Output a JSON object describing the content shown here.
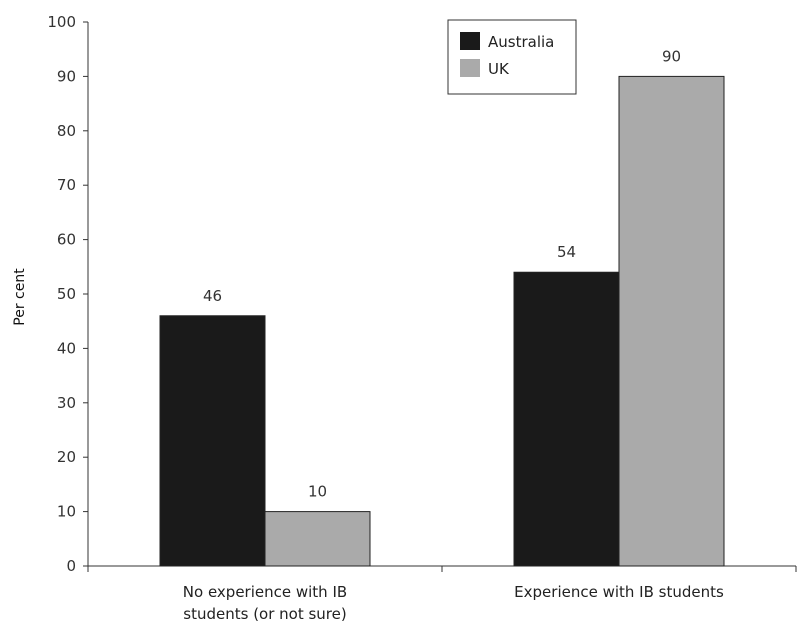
{
  "chart_data": {
    "type": "bar",
    "title": "",
    "xlabel": "",
    "ylabel": "Per cent",
    "ylim": [
      0,
      100
    ],
    "yticks": [
      0,
      10,
      20,
      30,
      40,
      50,
      60,
      70,
      80,
      90,
      100
    ],
    "categories": [
      [
        "No experience with IB",
        "students (or not sure)"
      ],
      [
        "Experience with IB students"
      ]
    ],
    "series": [
      {
        "name": "Australia",
        "color": "#1a1a1a",
        "values": [
          46,
          54
        ],
        "labels": [
          "46",
          "54"
        ]
      },
      {
        "name": "UK",
        "color": "#aaaaaa",
        "values": [
          10,
          90
        ],
        "labels": [
          "10",
          "90"
        ]
      }
    ],
    "legend": "top-center",
    "grid": false
  }
}
